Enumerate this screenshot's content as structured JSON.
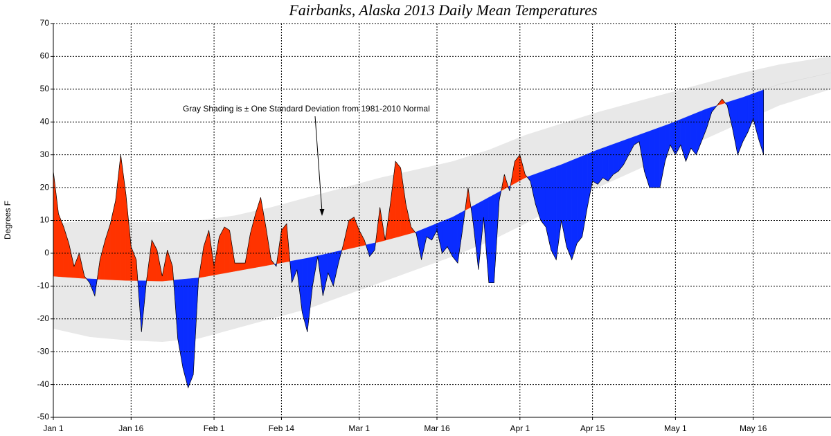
{
  "chart_data": {
    "type": "anomaly-area",
    "title": "Fairbanks, Alaska 2013 Daily Mean Temperatures",
    "y_label": "Degrees F",
    "annotation": "Gray Shading is ± One Standard Deviation from 1981-2010 Normal",
    "xlim": [
      1,
      151
    ],
    "xticks": [
      {
        "value": 1,
        "label": "Jan 1"
      },
      {
        "value": 16,
        "label": "Jan 16"
      },
      {
        "value": 32,
        "label": "Feb 1"
      },
      {
        "value": 45,
        "label": "Feb 14"
      },
      {
        "value": 60,
        "label": "Mar 1"
      },
      {
        "value": 75,
        "label": "Mar 16"
      },
      {
        "value": 91,
        "label": "Apr 1"
      },
      {
        "value": 105,
        "label": "Apr 15"
      },
      {
        "value": 121,
        "label": "May 1"
      },
      {
        "value": 136,
        "label": "May 16"
      }
    ],
    "ylim": [
      -50,
      70
    ],
    "yticks": [
      -50,
      -40,
      -30,
      -20,
      -10,
      0,
      10,
      20,
      30,
      40,
      50,
      60,
      70
    ],
    "grid": true,
    "above_color": "#ff3300",
    "below_color": "#0a2cff",
    "band_color": "#e8e8e8",
    "temps": {
      "x": [
        1,
        2,
        3,
        4,
        5,
        6,
        7,
        8,
        9,
        10,
        11,
        12,
        13,
        14,
        15,
        16,
        17,
        18,
        19,
        20,
        21,
        22,
        23,
        24,
        25,
        26,
        27,
        28,
        29,
        30,
        31,
        32,
        33,
        34,
        35,
        36,
        37,
        38,
        39,
        40,
        41,
        42,
        43,
        44,
        45,
        46,
        47,
        48,
        49,
        50,
        51,
        52,
        53,
        54,
        55,
        56,
        57,
        58,
        59,
        60,
        61,
        62,
        63,
        64,
        65,
        66,
        67,
        68,
        69,
        70,
        71,
        72,
        73,
        74,
        75,
        76,
        77,
        78,
        79,
        80,
        81,
        82,
        83,
        84,
        85,
        86,
        87,
        88,
        89,
        90,
        91,
        92,
        93,
        94,
        95,
        96,
        97,
        98,
        99,
        100,
        101,
        102,
        103,
        104,
        105,
        106,
        107,
        108,
        109,
        110,
        111,
        112,
        113,
        114,
        115,
        116,
        117,
        118,
        119,
        120,
        121,
        122,
        123,
        124,
        125,
        126,
        127,
        128,
        129,
        130,
        131,
        132,
        133,
        134,
        135,
        136,
        137,
        138
      ],
      "values": [
        25,
        12,
        8,
        3,
        -4,
        0,
        -7,
        -9,
        -13,
        -2,
        4,
        9,
        16,
        30,
        18,
        2,
        -2,
        -24,
        -8,
        4,
        1,
        -7,
        1,
        -4,
        -26,
        -35,
        -41,
        -37,
        -8,
        2,
        7,
        -4,
        5,
        8,
        7,
        -3,
        -3,
        -3,
        6,
        12,
        17,
        8,
        -2,
        -4,
        7,
        9,
        -9,
        -5,
        -18,
        -24,
        -10,
        -1,
        -13,
        -6,
        -10,
        -3,
        3,
        10,
        11,
        7,
        4,
        -1,
        1,
        14,
        4,
        15,
        28,
        26,
        15,
        8,
        6,
        -2,
        5,
        4,
        7,
        0,
        2,
        -1,
        -3,
        8,
        20,
        9,
        -5,
        11,
        -9,
        -9,
        16,
        24,
        19,
        28,
        30,
        24,
        22,
        15,
        10,
        8,
        1,
        -2,
        10,
        2,
        -2,
        3,
        5,
        14,
        22,
        21,
        23,
        22,
        24,
        25,
        27,
        30,
        33,
        34,
        25,
        20,
        20,
        20,
        28,
        33,
        30,
        33,
        28,
        32,
        30,
        34,
        38,
        43,
        45,
        47,
        45,
        38,
        30,
        34,
        37,
        41,
        35,
        30
      ]
    },
    "normal": {
      "x": [
        1,
        8,
        15,
        22,
        29,
        36,
        43,
        50,
        57,
        64,
        71,
        78,
        85,
        92,
        99,
        106,
        113,
        120,
        127,
        134,
        141,
        151
      ],
      "values": [
        -7,
        -7.8,
        -8.3,
        -8.5,
        -7.5,
        -5.5,
        -3.5,
        -1.5,
        1,
        3.5,
        6.5,
        11,
        17,
        23,
        27,
        31.5,
        35.5,
        39.5,
        44,
        47.5,
        51.5,
        55
      ]
    },
    "band_upper": {
      "x": [
        1,
        8,
        15,
        22,
        29,
        36,
        43,
        50,
        57,
        64,
        71,
        78,
        85,
        92,
        99,
        106,
        113,
        120,
        127,
        134,
        141,
        151
      ],
      "values": [
        9,
        10,
        9.5,
        9.5,
        10,
        11.5,
        14,
        17,
        20,
        23,
        25.5,
        28,
        31.5,
        36,
        39.5,
        43,
        46,
        49,
        52,
        55,
        57.5,
        60
      ]
    },
    "band_lower": {
      "x": [
        1,
        8,
        15,
        22,
        29,
        36,
        43,
        50,
        57,
        64,
        71,
        78,
        85,
        92,
        99,
        106,
        113,
        120,
        127,
        134,
        141,
        151
      ],
      "values": [
        -23,
        -25.5,
        -26.5,
        -27,
        -26,
        -23,
        -20,
        -17,
        -13,
        -9,
        -5,
        -1,
        3.5,
        9,
        15,
        20,
        25,
        30,
        35,
        40,
        45,
        50
      ]
    }
  }
}
